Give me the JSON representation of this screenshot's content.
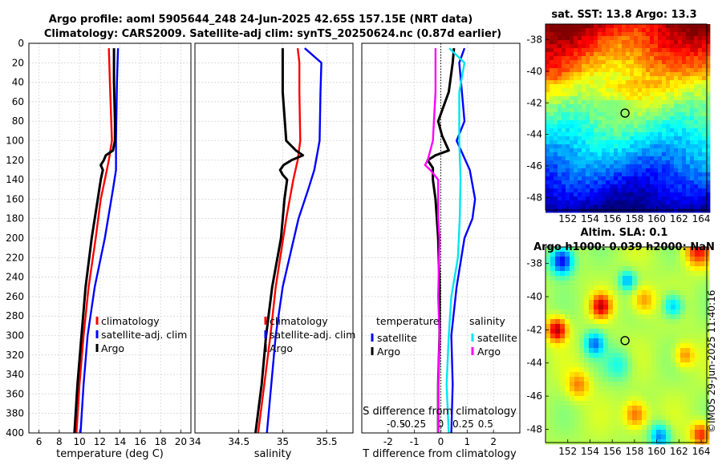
{
  "title": {
    "line1": "Argo profile: aoml 5905644_248 24-Jun-2025 42.65S 157.15E (NRT data)",
    "line2": "Climatology: CARS2009. Satellite-adj clim: synTS_20250624.nc (0.87d earlier)"
  },
  "credit": "©IMOS 29-Jun-2025 11:40:16",
  "colors": {
    "climatology": "#ff0000",
    "satellite": "#0000ff",
    "argo": "#000000",
    "sat_salinity": "#00e5f0",
    "argo_salinity": "#ff00ff"
  },
  "chart_data": [
    {
      "type": "line",
      "id": "temperature",
      "xlabel": "temperature (deg C)",
      "ylabel": "",
      "xlim": [
        5,
        21
      ],
      "ylim": [
        400,
        0
      ],
      "x_ticks": [
        "6",
        "8",
        "10",
        "12",
        "14",
        "16",
        "18",
        "20"
      ],
      "x_tick_values": [
        6,
        8,
        10,
        12,
        14,
        16,
        18,
        20
      ],
      "y_ticks": [
        "0",
        "20",
        "40",
        "60",
        "80",
        "100",
        "120",
        "140",
        "160",
        "180",
        "200",
        "220",
        "240",
        "260",
        "280",
        "300",
        "320",
        "340",
        "360",
        "380",
        "400"
      ],
      "y_tick_values": [
        0,
        20,
        40,
        60,
        80,
        100,
        120,
        140,
        160,
        180,
        200,
        220,
        240,
        260,
        280,
        300,
        320,
        340,
        360,
        380,
        400
      ],
      "grid": true,
      "legend": [
        "climatology",
        "satellite-adj. clim",
        "Argo"
      ],
      "series": [
        {
          "name": "climatology",
          "color": "#ff0000",
          "depth": [
            5,
            40,
            100,
            120,
            140,
            160,
            200,
            250,
            300,
            350,
            400
          ],
          "values": [
            12.9,
            13.0,
            13.2,
            12.9,
            12.5,
            12.1,
            11.6,
            10.9,
            10.4,
            10.0,
            9.7
          ]
        },
        {
          "name": "satellite-adj. clim",
          "color": "#0000ff",
          "depth": [
            5,
            40,
            100,
            130,
            150,
            200,
            250,
            300,
            350,
            400
          ],
          "values": [
            13.8,
            13.7,
            13.6,
            13.6,
            13.3,
            12.5,
            11.5,
            10.8,
            10.4,
            10.1
          ]
        },
        {
          "name": "Argo",
          "color": "#000000",
          "depth": [
            5,
            40,
            80,
            100,
            110,
            115,
            120,
            125,
            130,
            140,
            160,
            200,
            250,
            300,
            350,
            400
          ],
          "values": [
            13.4,
            13.4,
            13.5,
            13.5,
            13.3,
            12.6,
            12.4,
            12.1,
            12.3,
            12.1,
            11.8,
            11.2,
            10.6,
            10.2,
            9.8,
            9.5
          ]
        }
      ]
    },
    {
      "type": "line",
      "id": "salinity",
      "xlabel": "salinity",
      "xlim": [
        34,
        35.8
      ],
      "ylim": [
        400,
        0
      ],
      "x_ticks": [
        "34",
        "34.5",
        "35",
        "35.5"
      ],
      "x_tick_values": [
        34,
        34.5,
        35,
        35.5
      ],
      "grid": true,
      "legend": [
        "climatology",
        "satellite-adj. clim",
        "Argo"
      ],
      "series": [
        {
          "name": "climatology",
          "color": "#ff0000",
          "depth": [
            5,
            20,
            50,
            100,
            120,
            140,
            180,
            250,
            300,
            350,
            400
          ],
          "values": [
            35.17,
            35.19,
            35.19,
            35.2,
            35.17,
            35.12,
            35.04,
            34.92,
            34.86,
            34.79,
            34.72
          ]
        },
        {
          "name": "satellite-adj. clim",
          "color": "#0000ff",
          "depth": [
            5,
            20,
            50,
            100,
            130,
            150,
            180,
            250,
            300,
            350,
            400
          ],
          "values": [
            35.25,
            35.44,
            35.43,
            35.42,
            35.36,
            35.29,
            35.18,
            35.0,
            34.92,
            34.87,
            34.82
          ]
        },
        {
          "name": "Argo",
          "color": "#000000",
          "depth": [
            5,
            50,
            100,
            110,
            115,
            120,
            125,
            130,
            135,
            140,
            160,
            200,
            250,
            300,
            350,
            400
          ],
          "values": [
            35.0,
            35.0,
            35.04,
            35.15,
            35.23,
            35.1,
            35.01,
            34.97,
            35.0,
            35.05,
            35.02,
            34.98,
            34.88,
            34.81,
            34.76,
            34.69
          ]
        }
      ]
    },
    {
      "type": "line",
      "id": "difference",
      "xlabel": "T difference from climatology",
      "xlabel_top": "S difference from climatology",
      "xlim": [
        -3,
        3
      ],
      "ylim": [
        400,
        0
      ],
      "x_ticks": [
        "-2",
        "-1",
        "0",
        "1",
        "2"
      ],
      "x_tick_values": [
        -2,
        -1,
        0,
        1,
        2
      ],
      "s_ticks": [
        "-0.5",
        "-0.25",
        "0",
        "0.25",
        "0.5"
      ],
      "grid": true,
      "legend": {
        "temperature_header": "temperature",
        "salinity_header": "salinity",
        "temp_items": [
          "satellite",
          "Argo"
        ],
        "sal_items": [
          "satellite",
          "Argo"
        ]
      },
      "series": [
        {
          "name": "temperature satellite",
          "color": "#0000ff",
          "depth": [
            5,
            20,
            50,
            80,
            100,
            130,
            160,
            180,
            200,
            250,
            300,
            350,
            400
          ],
          "values": [
            0.9,
            0.7,
            0.8,
            0.9,
            0.6,
            1.1,
            1.3,
            1.2,
            0.9,
            0.6,
            0.4,
            0.45,
            0.4
          ]
        },
        {
          "name": "temperature Argo",
          "color": "#000000",
          "depth": [
            5,
            20,
            50,
            80,
            95,
            110,
            115,
            120,
            128,
            140,
            160,
            200,
            250,
            300,
            350,
            400
          ],
          "values": [
            0.5,
            0.45,
            0.3,
            -0.1,
            0.05,
            0.3,
            -0.2,
            -0.5,
            -0.3,
            -0.3,
            -0.2,
            -0.1,
            -0.05,
            -0.05,
            -0.1,
            -0.1
          ]
        },
        {
          "name": "salinity satellite",
          "color": "#00e5f0",
          "depth": [
            5,
            20,
            50,
            100,
            140,
            180,
            220,
            260,
            300,
            350,
            400
          ],
          "values": [
            0.32,
            0.9,
            0.7,
            0.7,
            0.75,
            0.72,
            0.65,
            0.4,
            0.3,
            0.22,
            0.3
          ]
        },
        {
          "name": "salinity Argo",
          "color": "#ff00ff",
          "depth": [
            5,
            50,
            100,
            110,
            120,
            125,
            130,
            140,
            180,
            200,
            260,
            300,
            350,
            400
          ],
          "values": [
            -0.2,
            -0.2,
            -0.3,
            -0.4,
            -0.5,
            -0.6,
            -0.4,
            -0.1,
            -0.1,
            -0.05,
            -0.1,
            -0.05,
            -0.1,
            -0.1
          ]
        }
      ]
    },
    {
      "type": "heatmap",
      "id": "sst_map",
      "title": "sat. SST: 13.8 Argo: 13.3",
      "xlim": [
        150,
        164.5
      ],
      "ylim": [
        -48.8,
        -37
      ],
      "x_ticks": [
        "152",
        "154",
        "156",
        "158",
        "160",
        "162",
        "164"
      ],
      "x_tick_values": [
        152,
        154,
        156,
        158,
        160,
        162,
        164
      ],
      "y_ticks": [
        "-38",
        "-40",
        "-42",
        "-44",
        "-46",
        "-48"
      ],
      "y_tick_values": [
        -38,
        -40,
        -42,
        -44,
        -46,
        -48
      ],
      "marker": {
        "lon": 157.15,
        "lat": -42.65
      }
    },
    {
      "type": "heatmap",
      "id": "sla_map",
      "title": "Altim. SLA: 0.1",
      "subtitle": "Argo h1000: 0.039 h2000: NaN",
      "xlim": [
        150,
        164.5
      ],
      "ylim": [
        -48.8,
        -37
      ],
      "x_ticks": [
        "152",
        "154",
        "156",
        "158",
        "160",
        "162",
        "164"
      ],
      "x_tick_values": [
        152,
        154,
        156,
        158,
        160,
        162,
        164
      ],
      "y_ticks": [
        "-38",
        "-40",
        "-42",
        "-44",
        "-46",
        "-48"
      ],
      "y_tick_values": [
        -38,
        -40,
        -42,
        -44,
        -46,
        -48
      ],
      "marker": {
        "lon": 157.15,
        "lat": -42.65
      }
    }
  ]
}
